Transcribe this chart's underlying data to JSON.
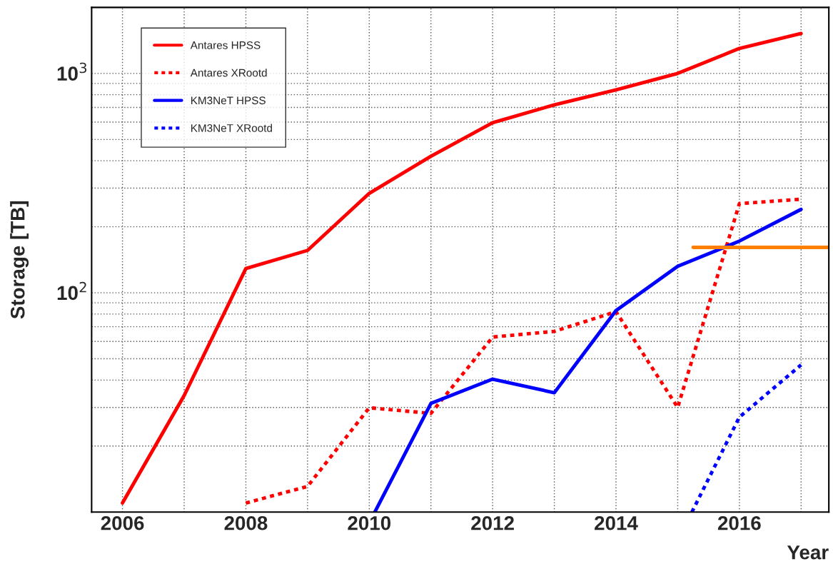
{
  "chart_data": {
    "type": "line",
    "ylabel": "Storage [TB]",
    "xlabel": "Year",
    "x": [
      2006,
      2007,
      2008,
      2009,
      2010,
      2011,
      2012,
      2013,
      2014,
      2015,
      2016,
      2017
    ],
    "series": [
      {
        "name": "Antares HPSS",
        "color": "#ff0000",
        "line_style": "solid",
        "values": [
          11,
          34,
          129,
          156,
          284,
          419,
          596,
          719,
          842,
          1000,
          1300,
          1520
        ]
      },
      {
        "name": "Antares XRootd",
        "color": "#ff0000",
        "line_style": "dotted",
        "values": [
          null,
          null,
          11,
          13.1,
          29.9,
          28.2,
          62.8,
          66.7,
          82,
          30,
          255,
          267
        ]
      },
      {
        "name": "KM3NeT HPSS",
        "color": "#0000ff",
        "line_style": "solid",
        "x": [
          2010.09,
          2011,
          2012,
          2013,
          2014,
          2015,
          2016,
          2017
        ],
        "values": [
          10,
          31.3,
          40.4,
          35,
          83,
          132,
          172,
          240
        ]
      },
      {
        "name": "KM3NeT XRootd",
        "color": "#0000ff",
        "line_style": "dotted",
        "x": [
          2015.23,
          2016,
          2017
        ],
        "values": [
          10,
          27.1,
          46.9
        ]
      },
      {
        "color": "#ff7f00",
        "line_style": "solid",
        "x": [
          2015.25,
          2017.45
        ],
        "values": [
          161,
          161
        ]
      }
    ],
    "log": "y",
    "xlim": [
      2005.5,
      2017.45
    ],
    "ylim": [
      10,
      2000
    ],
    "xticks": [
      2006,
      {
        "value": 2007,
        "label": null
      },
      2008,
      {
        "value": 2009,
        "label": null
      },
      2010,
      {
        "value": 2011,
        "label": null
      },
      2012,
      {
        "value": 2013,
        "label": null
      },
      2014,
      {
        "value": 2015,
        "label": null
      },
      2016,
      {
        "value": 2017,
        "label": null
      }
    ],
    "yticks": [
      {
        "value": 100,
        "label": "10$^{2}$"
      },
      {
        "value": 1000,
        "label": "10$^{3}$"
      }
    ],
    "grid": true,
    "legend": "top left"
  }
}
